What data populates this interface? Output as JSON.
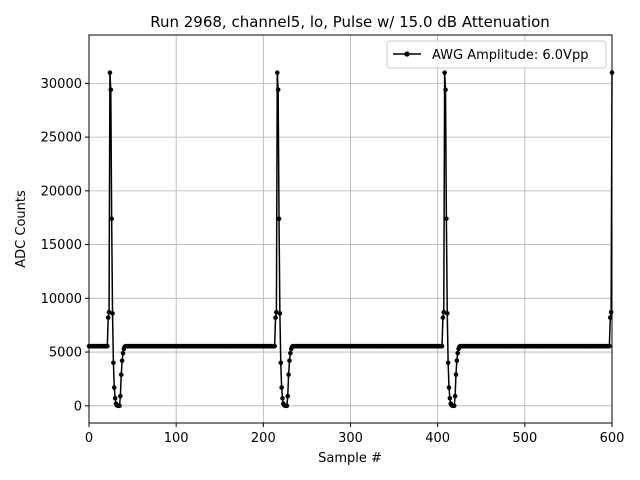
{
  "chart_data": {
    "type": "line",
    "title": "Run 2968, channel5, lo, Pulse w/ 15.0 dB Attenuation",
    "xlabel": "Sample #",
    "ylabel": "ADC Counts",
    "xlim": [
      0,
      600
    ],
    "ylim": [
      -1600,
      34500
    ],
    "xticks": [
      0,
      100,
      200,
      300,
      400,
      500,
      600
    ],
    "yticks": [
      0,
      5000,
      10000,
      15000,
      20000,
      25000,
      30000
    ],
    "grid": true,
    "legend_position": "top-right",
    "baseline": 5550,
    "period": 192,
    "samples": 601,
    "pulse_shape": [
      [
        -2,
        8200
      ],
      [
        -1,
        8700
      ],
      [
        0,
        31000
      ],
      [
        1,
        29400
      ],
      [
        2,
        17400
      ],
      [
        3,
        8600
      ],
      [
        4,
        4000
      ],
      [
        5,
        1700
      ],
      [
        6,
        700
      ],
      [
        7,
        200
      ],
      [
        8,
        50
      ],
      [
        9,
        0
      ],
      [
        10,
        0
      ],
      [
        11,
        0
      ],
      [
        12,
        900
      ],
      [
        13,
        2900
      ],
      [
        14,
        4200
      ],
      [
        15,
        4900
      ],
      [
        16,
        5300
      ],
      [
        17,
        5500
      ]
    ],
    "pulse_starts": [
      24,
      216,
      408,
      600
    ],
    "series": [
      {
        "name": "AWG Amplitude: 6.0Vpp",
        "color": "#000000"
      }
    ]
  }
}
